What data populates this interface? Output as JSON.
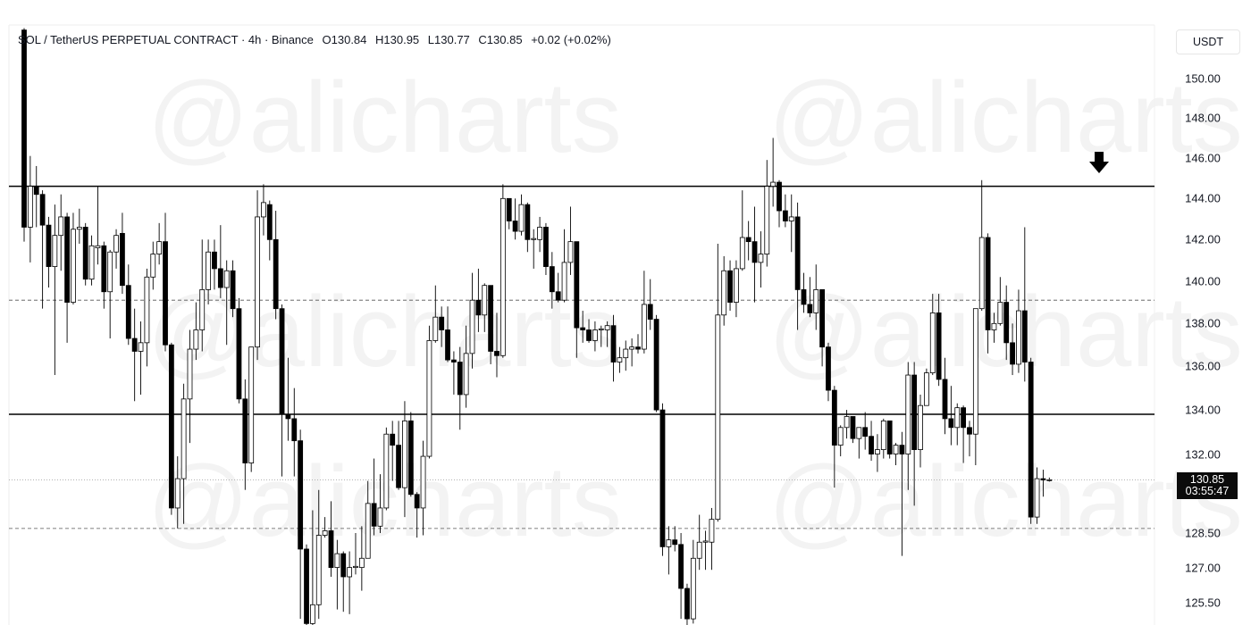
{
  "legend": {
    "symbol": "SOL / TetherUS PERPETUAL CONTRACT · 4h · Binance",
    "open": "O130.84",
    "high": "H130.95",
    "low": "L130.77",
    "close": "C130.85",
    "change": "+0.02 (+0.02%)"
  },
  "axis": {
    "currency_button": "USDT",
    "ticks": [
      "150.00",
      "148.00",
      "146.00",
      "144.00",
      "142.00",
      "140.00",
      "138.00",
      "136.00",
      "134.00",
      "132.00",
      "128.50",
      "127.00",
      "125.50"
    ],
    "current_price": "130.85",
    "countdown": "03:55:47"
  },
  "watermark": "@alicharts",
  "colors": {
    "up_fill": "#ffffff",
    "down_fill": "#000000",
    "line": "#000000"
  },
  "annotation": {
    "icon": "arrow-down-icon"
  },
  "chart_data": {
    "type": "candlestick",
    "scale": "log",
    "ylim": [
      124.5,
      152.7
    ],
    "grid": false,
    "ylabel": "",
    "yticks": [
      150,
      148,
      146,
      144,
      142,
      140,
      138,
      136,
      134,
      132,
      128.5,
      127,
      125.5
    ],
    "current_price": 130.85,
    "horizontal_lines": [
      {
        "price": 144.6,
        "style": "solid"
      },
      {
        "price": 133.8,
        "style": "solid"
      },
      {
        "price": 139.1,
        "style": "dashed"
      },
      {
        "price": 128.7,
        "style": "dashed"
      },
      {
        "price": 130.85,
        "style": "dotted"
      }
    ],
    "ohlc": [
      [
        152.5,
        152.6,
        141.9,
        142.6
      ],
      [
        142.6,
        146.1,
        140.9,
        144.6
      ],
      [
        144.6,
        145.6,
        142.6,
        144.2
      ],
      [
        144.2,
        144.4,
        138.7,
        142.7
      ],
      [
        142.7,
        143.1,
        139.7,
        140.7
      ],
      [
        140.7,
        143.7,
        135.6,
        142.2
      ],
      [
        142.2,
        144.2,
        140.5,
        143.1
      ],
      [
        143.1,
        143.3,
        137.1,
        139.0
      ],
      [
        139.0,
        143.3,
        138.9,
        142.5
      ],
      [
        142.5,
        143.5,
        141.8,
        142.6
      ],
      [
        142.6,
        142.8,
        139.8,
        140.1
      ],
      [
        140.1,
        142.2,
        139.8,
        141.7
      ],
      [
        141.6,
        144.6,
        140.8,
        141.7
      ],
      [
        141.7,
        141.9,
        138.7,
        139.5
      ],
      [
        139.5,
        141.5,
        137.3,
        141.4
      ],
      [
        141.4,
        142.5,
        140.6,
        142.2
      ],
      [
        142.3,
        143.3,
        139.4,
        139.8
      ],
      [
        139.8,
        140.8,
        137.0,
        137.3
      ],
      [
        137.3,
        138.7,
        134.4,
        136.7
      ],
      [
        136.7,
        138.1,
        134.7,
        137.1
      ],
      [
        137.1,
        140.6,
        136.0,
        140.2
      ],
      [
        140.2,
        141.9,
        139.6,
        141.3
      ],
      [
        141.3,
        142.8,
        140.8,
        141.9
      ],
      [
        141.9,
        143.3,
        136.7,
        137.0
      ],
      [
        137.0,
        137.1,
        129.3,
        129.6
      ],
      [
        129.6,
        131.9,
        128.7,
        130.9
      ],
      [
        130.9,
        135.2,
        128.9,
        134.5
      ],
      [
        134.5,
        137.7,
        132.5,
        136.8
      ],
      [
        136.8,
        139.0,
        136.3,
        137.7
      ],
      [
        137.7,
        142.0,
        136.7,
        139.6
      ],
      [
        139.6,
        142.0,
        138.9,
        141.4
      ],
      [
        141.4,
        142.0,
        139.6,
        140.6
      ],
      [
        140.6,
        142.7,
        139.2,
        139.7
      ],
      [
        139.7,
        141.0,
        137.0,
        140.5
      ],
      [
        140.5,
        141.0,
        138.3,
        138.7
      ],
      [
        138.7,
        139.2,
        134.3,
        134.5
      ],
      [
        134.5,
        135.4,
        130.4,
        131.6
      ],
      [
        131.6,
        136.9,
        131.2,
        136.9
      ],
      [
        136.9,
        144.4,
        136.3,
        143.1
      ],
      [
        143.1,
        144.7,
        142.2,
        143.8
      ],
      [
        143.7,
        143.9,
        141.0,
        142.0
      ],
      [
        142.0,
        143.4,
        138.2,
        138.7
      ],
      [
        138.7,
        138.9,
        131.0,
        133.8
      ],
      [
        133.8,
        136.4,
        132.6,
        133.6
      ],
      [
        133.6,
        135.0,
        131.0,
        132.6
      ],
      [
        132.6,
        133.1,
        124.8,
        127.8
      ],
      [
        127.8,
        128.0,
        124.3,
        124.6
      ],
      [
        124.6,
        129.5,
        124.4,
        125.4
      ],
      [
        125.4,
        130.4,
        124.8,
        128.4
      ],
      [
        128.4,
        129.2,
        128.3,
        128.6
      ],
      [
        128.6,
        129.9,
        126.6,
        127.0
      ],
      [
        127.0,
        128.2,
        125.2,
        127.6
      ],
      [
        127.6,
        127.7,
        125.1,
        126.6
      ],
      [
        126.6,
        127.7,
        125.0,
        127.0
      ],
      [
        127.0,
        128.5,
        126.7,
        127.05
      ],
      [
        127.0,
        128.8,
        126.0,
        127.4
      ],
      [
        127.4,
        130.8,
        127.4,
        129.8
      ],
      [
        129.8,
        131.8,
        128.4,
        128.8
      ],
      [
        128.8,
        131.1,
        128.5,
        129.6
      ],
      [
        129.6,
        133.2,
        129.5,
        132.9
      ],
      [
        132.9,
        133.5,
        130.8,
        132.4
      ],
      [
        132.4,
        133.5,
        130.4,
        130.5
      ],
      [
        130.5,
        134.4,
        129.2,
        133.5
      ],
      [
        133.5,
        133.9,
        130.1,
        130.2
      ],
      [
        130.2,
        130.3,
        128.3,
        129.6
      ],
      [
        129.6,
        132.6,
        128.4,
        131.9
      ],
      [
        131.9,
        137.9,
        131.8,
        137.2
      ],
      [
        137.2,
        139.8,
        137.1,
        138.3
      ],
      [
        138.3,
        138.8,
        136.9,
        137.7
      ],
      [
        137.7,
        138.8,
        136.2,
        136.3
      ],
      [
        136.3,
        136.7,
        134.7,
        136.2
      ],
      [
        136.2,
        136.9,
        133.1,
        134.7
      ],
      [
        134.7,
        137.9,
        134.1,
        136.6
      ],
      [
        136.6,
        140.4,
        135.9,
        139.1
      ],
      [
        139.1,
        140.6,
        137.6,
        138.4
      ],
      [
        138.4,
        139.9,
        137.6,
        139.8
      ],
      [
        139.8,
        139.8,
        136.1,
        136.7
      ],
      [
        136.7,
        138.5,
        135.5,
        136.5
      ],
      [
        136.5,
        144.7,
        136.4,
        144.0
      ],
      [
        144.0,
        144.0,
        142.5,
        142.9
      ],
      [
        142.9,
        144.0,
        142.0,
        142.4
      ],
      [
        142.4,
        144.2,
        142.2,
        143.7
      ],
      [
        143.7,
        143.8,
        141.4,
        142.0
      ],
      [
        142.0,
        142.5,
        140.6,
        142.05
      ],
      [
        142.0,
        143.1,
        141.4,
        142.6
      ],
      [
        142.6,
        142.8,
        140.3,
        140.7
      ],
      [
        140.7,
        141.4,
        138.7,
        139.5
      ],
      [
        139.5,
        140.4,
        139.0,
        139.1
      ],
      [
        139.1,
        142.5,
        139.0,
        140.9
      ],
      [
        140.9,
        143.6,
        140.3,
        141.9
      ],
      [
        141.9,
        141.9,
        136.4,
        137.8
      ],
      [
        137.8,
        138.6,
        137.1,
        137.7
      ],
      [
        137.7,
        138.2,
        137.1,
        137.2
      ],
      [
        137.2,
        138.1,
        136.7,
        137.7
      ],
      [
        137.7,
        137.9,
        136.9,
        137.75
      ],
      [
        137.7,
        138.1,
        136.9,
        137.9
      ],
      [
        137.9,
        138.4,
        135.3,
        136.2
      ],
      [
        136.2,
        136.9,
        135.7,
        136.4
      ],
      [
        136.4,
        137.2,
        135.8,
        136.8
      ],
      [
        136.8,
        137.3,
        136.0,
        136.9
      ],
      [
        136.9,
        137.5,
        136.6,
        136.8
      ],
      [
        136.8,
        140.5,
        136.6,
        138.9
      ],
      [
        138.9,
        140.1,
        137.7,
        138.2
      ],
      [
        138.2,
        138.4,
        133.9,
        134.0
      ],
      [
        134.0,
        134.3,
        127.5,
        127.9
      ],
      [
        127.9,
        128.8,
        126.7,
        128.2
      ],
      [
        128.2,
        128.8,
        127.7,
        128.0
      ],
      [
        128.0,
        128.5,
        124.8,
        126.1
      ],
      [
        126.1,
        126.3,
        124.5,
        124.8
      ],
      [
        124.8,
        128.2,
        124.6,
        127.4
      ],
      [
        127.4,
        129.3,
        126.9,
        128.1
      ],
      [
        128.1,
        128.6,
        126.9,
        128.15
      ],
      [
        128.1,
        129.6,
        126.9,
        129.1
      ],
      [
        129.1,
        141.8,
        129.0,
        138.4
      ],
      [
        138.4,
        141.2,
        137.9,
        140.5
      ],
      [
        140.5,
        141.0,
        138.6,
        139.0
      ],
      [
        139.0,
        141.0,
        138.3,
        140.6
      ],
      [
        140.6,
        144.4,
        140.5,
        142.1
      ],
      [
        142.1,
        142.9,
        141.0,
        141.9
      ],
      [
        141.9,
        143.6,
        139.0,
        140.9
      ],
      [
        140.9,
        142.4,
        139.7,
        141.3
      ],
      [
        141.3,
        145.9,
        140.7,
        144.6
      ],
      [
        144.6,
        147.0,
        143.6,
        144.8
      ],
      [
        144.8,
        144.9,
        142.6,
        143.4
      ],
      [
        143.4,
        144.2,
        142.6,
        142.9
      ],
      [
        142.9,
        144.2,
        141.4,
        143.1
      ],
      [
        143.1,
        143.8,
        137.7,
        139.6
      ],
      [
        139.6,
        140.4,
        138.5,
        138.9
      ],
      [
        138.9,
        140.2,
        138.3,
        138.5
      ],
      [
        138.5,
        140.8,
        137.7,
        139.6
      ],
      [
        139.6,
        139.6,
        136.0,
        136.9
      ],
      [
        136.9,
        137.1,
        134.4,
        134.9
      ],
      [
        134.9,
        135.1,
        130.5,
        132.4
      ],
      [
        132.4,
        133.3,
        131.9,
        133.2
      ],
      [
        133.2,
        134.0,
        132.7,
        133.7
      ],
      [
        133.7,
        133.7,
        132.5,
        132.7
      ],
      [
        132.7,
        133.2,
        131.8,
        133.2
      ],
      [
        133.2,
        133.9,
        132.2,
        132.8
      ],
      [
        132.8,
        133.5,
        131.7,
        132.0
      ],
      [
        132.0,
        132.9,
        131.2,
        132.2
      ],
      [
        132.2,
        133.6,
        131.8,
        133.5
      ],
      [
        133.5,
        133.5,
        131.8,
        132.0
      ],
      [
        132.0,
        132.5,
        131.5,
        132.4
      ],
      [
        132.4,
        133.0,
        127.5,
        132.0
      ],
      [
        132.0,
        136.2,
        130.4,
        135.6
      ],
      [
        135.6,
        136.2,
        129.7,
        132.2
      ],
      [
        132.2,
        134.7,
        131.4,
        134.2
      ],
      [
        134.2,
        135.9,
        134.2,
        135.7
      ],
      [
        135.7,
        139.4,
        135.6,
        138.5
      ],
      [
        138.5,
        139.4,
        135.1,
        135.4
      ],
      [
        135.4,
        136.4,
        132.9,
        133.6
      ],
      [
        133.6,
        135.1,
        132.4,
        133.2
      ],
      [
        133.2,
        134.3,
        132.4,
        134.1
      ],
      [
        134.1,
        134.2,
        131.6,
        133.2
      ],
      [
        133.2,
        133.5,
        131.9,
        132.9
      ],
      [
        132.9,
        138.7,
        131.5,
        138.7
      ],
      [
        138.7,
        144.9,
        138.6,
        142.1
      ],
      [
        142.1,
        142.3,
        136.6,
        137.7
      ],
      [
        137.7,
        138.5,
        137.1,
        138.0
      ],
      [
        138.0,
        140.2,
        137.9,
        139.0
      ],
      [
        139.0,
        139.8,
        136.3,
        137.1
      ],
      [
        137.1,
        138.0,
        135.6,
        136.1
      ],
      [
        136.1,
        139.6,
        135.7,
        138.6
      ],
      [
        138.6,
        142.6,
        135.3,
        136.2
      ],
      [
        136.2,
        136.4,
        128.9,
        129.2
      ],
      [
        129.2,
        131.4,
        128.9,
        130.9
      ],
      [
        130.9,
        131.3,
        130.1,
        130.84
      ],
      [
        130.84,
        130.95,
        130.77,
        130.85
      ]
    ]
  }
}
